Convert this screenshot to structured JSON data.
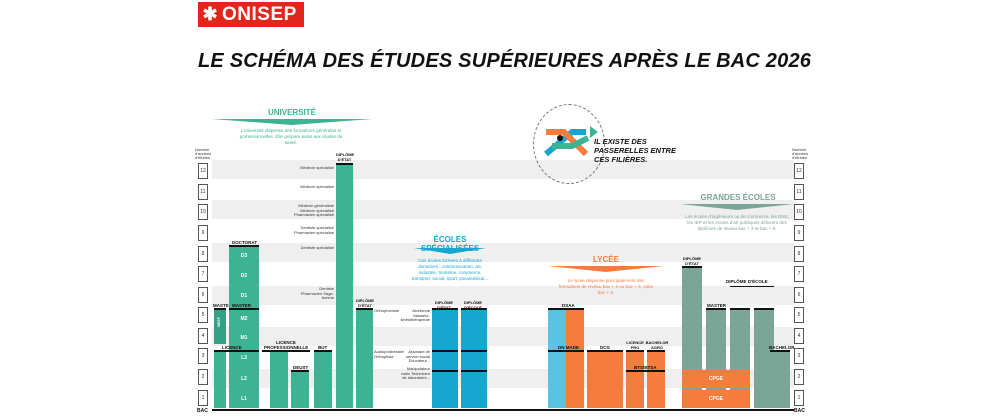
{
  "brand": {
    "logo_text": "ONISEP",
    "logo_mark": "✱"
  },
  "title": "LE SCHÉMA DES ÉTUDES SUPÉRIEURES APRÈS LE BAC 2026",
  "axis": {
    "caption": "Nombre d'années d'études",
    "years": [
      "12",
      "11",
      "10",
      "9",
      "8",
      "7",
      "6",
      "5",
      "4",
      "3",
      "2",
      "1"
    ],
    "base": "BAC"
  },
  "passerelles": "IL EXISTE DES PASSERELLES ENTRE CES FILIÈRES.",
  "universite": {
    "heading": "UNIVERSITÉ",
    "desc": "L'université dispense des formations générales et professionnelles. Elle prépare aussi aux études de santé.",
    "labels": {
      "doctorat": "DOCTORAT",
      "d3": "D3",
      "d2": "D2",
      "d1": "D1",
      "master1": "MASTER",
      "master2": "MASTER",
      "m2": "M2",
      "m1": "M1",
      "meef": "MEEF",
      "licence": "LICENCE",
      "l3": "L3",
      "l2": "L2",
      "l1": "L1",
      "licence_pro": "LICENCE PROFESSIONNELLE",
      "deust": "DEUST",
      "but": "BUT",
      "diplome_etat": "DIPLÔME D'ÉTAT",
      "diplome_etat2": "DIPLÔME D'ÉTAT"
    },
    "sante": [
      "Médecin spécialisé",
      "Médecin spécialisé",
      "Médecin généraliste Médecin spécialisé Pharmacien spécialisé",
      "Dentiste spécialisé Pharmacien spécialisé",
      "Dentiste spécialisé",
      "Dentiste Pharmacien Sage-femme",
      "Orthophoniste",
      "Audioprothésiste Orthoptiste"
    ]
  },
  "ecoles_specialisees": {
    "heading": "ÉCOLES SPÉCIALISÉES",
    "desc": "Ces écoles forment à différents domaines : communication, art, industrie, tourisme, commerce, transport, social, sport, paramédical...",
    "diplome_etat": "DIPLÔME D'ÉTAT",
    "diplome_ecole": "DIPLÔME D'ÉCOLE",
    "notes": [
      "Architecte Masseur-kinésithérapeute",
      "Assistant de service social Éducateur...",
      "Manipulateur radio Technicien de laboratoire..."
    ]
  },
  "lycee": {
    "heading": "LYCÉE",
    "desc": "Le lycée dispense principalement des formations de niveau bac + 2 ou bac + 3, voire bac + 5.",
    "labels": {
      "dsaa": "DSAA",
      "dnmade": "DN MADE",
      "dcg": "DCG",
      "lp": "LICENCE PRO",
      "ba": "BACHELOR AGRO",
      "bts": "BTS/BTSA"
    }
  },
  "grandes_ecoles": {
    "heading": "GRANDES ÉCOLES",
    "desc": "Les écoles d'ingénieurs ou de commerce, les ENS, les IEP et les écoles d'art publiques délivrent des diplômes de niveau bac + 3 et bac + 5.",
    "labels": {
      "diplome_etat": "DIPLÔME D'ÉTAT",
      "diplome_ecole": "DIPLÔME D'ÉCOLE",
      "master": "MASTER",
      "bachelor": "BACHELOR",
      "cpge1": "CPGE",
      "cpge2": "CPGE"
    }
  },
  "colors": {
    "universite": "#3cb493",
    "ecoles": "#16a6cf",
    "lycee": "#f47c3c",
    "grandes_ecoles": "#7aa597",
    "brand": "#e1261c"
  }
}
